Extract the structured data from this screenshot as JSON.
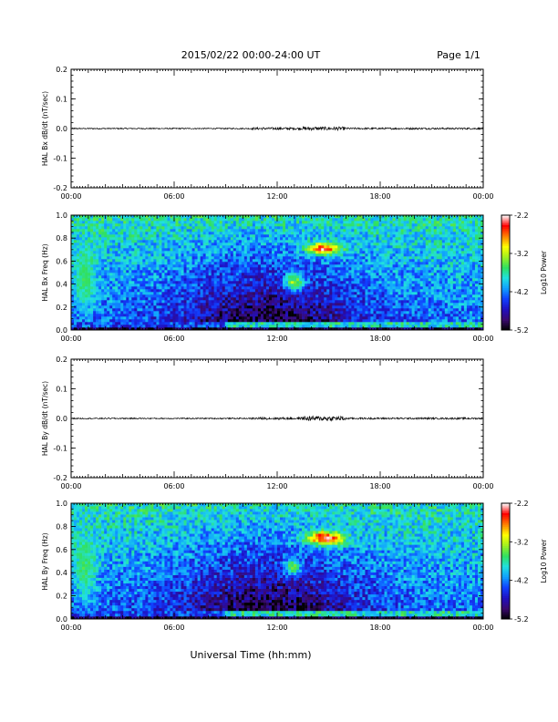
{
  "header": {
    "title": "2015/02/22  00:00-24:00 UT",
    "page": "Page 1/1"
  },
  "xlabel": "Universal Time (hh:mm)",
  "xticks": [
    "00:00",
    "06:00",
    "12:00",
    "18:00",
    "00:00"
  ],
  "colorscale": [
    "#000000",
    "#3a0a6e",
    "#2010c0",
    "#1040ff",
    "#10a0ff",
    "#20e0e0",
    "#30e060",
    "#a0f020",
    "#ffff00",
    "#ff8000",
    "#ff0000",
    "#ffffff"
  ],
  "chart_data": [
    {
      "type": "line",
      "ylabel": "HAL Bx dB/dt (nT/sec)",
      "xlim": [
        0,
        24
      ],
      "ylim": [
        -0.2,
        0.2
      ],
      "yticks": [
        "0.2",
        "0.1",
        "0.0",
        "-0.1",
        "-0.2"
      ],
      "baseline": 0.0,
      "noise": [
        {
          "from": 0,
          "to": 10.5,
          "amp": 0.002
        },
        {
          "from": 10.5,
          "to": 13.5,
          "amp": 0.004
        },
        {
          "from": 13.5,
          "to": 16,
          "amp": 0.006
        },
        {
          "from": 16,
          "to": 24,
          "amp": 0.003
        }
      ]
    },
    {
      "type": "heatmap",
      "ylabel": "HAL Bx Freq (Hz)",
      "xlim": [
        0,
        24
      ],
      "ylim": [
        0,
        1.0
      ],
      "yticks": [
        "1.0",
        "0.8",
        "0.6",
        "0.4",
        "0.2",
        "0.0"
      ],
      "colorbar": {
        "label": "Log10 Power",
        "ticks": [
          "-2.2",
          "-3.2",
          "-4.2",
          "-5.2"
        ],
        "range": [
          -5.2,
          -2.2
        ]
      },
      "features": [
        {
          "t": 14.7,
          "f": 0.71,
          "dt": 1.0,
          "df": 0.05,
          "level": -2.3
        },
        {
          "t": 13.0,
          "f": 0.42,
          "dt": 0.6,
          "df": 0.08,
          "level": -3.2
        },
        {
          "t": 0.8,
          "f": 0.45,
          "dt": 0.6,
          "df": 0.25,
          "level": -3.5
        }
      ]
    },
    {
      "type": "line",
      "ylabel": "HAL By dB/dt (nT/sec)",
      "xlim": [
        0,
        24
      ],
      "ylim": [
        -0.2,
        0.2
      ],
      "yticks": [
        "0.2",
        "0.1",
        "0.0",
        "-0.1",
        "-0.2"
      ],
      "baseline": 0.0,
      "noise": [
        {
          "from": 0,
          "to": 10.5,
          "amp": 0.002
        },
        {
          "from": 10.5,
          "to": 13.5,
          "amp": 0.004
        },
        {
          "from": 13.5,
          "to": 16,
          "amp": 0.008
        },
        {
          "from": 16,
          "to": 24,
          "amp": 0.003
        }
      ]
    },
    {
      "type": "heatmap",
      "ylabel": "HAL By Freq (Hz)",
      "xlim": [
        0,
        24
      ],
      "ylim": [
        0,
        1.0
      ],
      "yticks": [
        "1.0",
        "0.8",
        "0.6",
        "0.4",
        "0.2",
        "0.0"
      ],
      "colorbar": {
        "label": "Log10 Power",
        "ticks": [
          "-2.2",
          "-3.2",
          "-4.2",
          "-5.2"
        ],
        "range": [
          -5.2,
          -2.2
        ]
      },
      "features": [
        {
          "t": 14.8,
          "f": 0.7,
          "dt": 1.1,
          "df": 0.06,
          "level": -2.2
        },
        {
          "t": 12.9,
          "f": 0.45,
          "dt": 0.5,
          "df": 0.07,
          "level": -3.3
        },
        {
          "t": 0.8,
          "f": 0.45,
          "dt": 0.6,
          "df": 0.25,
          "level": -3.5
        }
      ]
    }
  ]
}
